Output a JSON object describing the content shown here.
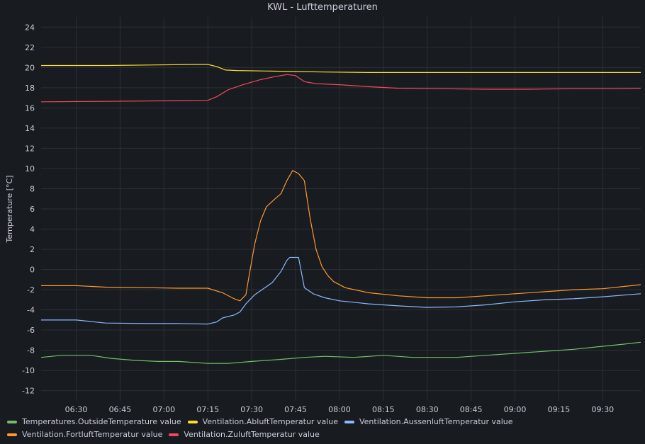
{
  "panel": {
    "title": "KWL - Lufttemperaturen"
  },
  "colors": {
    "background": "#181b1f",
    "grid": "#2c3035",
    "text": "#ccccdc"
  },
  "chart_data": {
    "type": "line",
    "title": "KWL - Lufttemperaturen",
    "xlabel": "",
    "ylabel": "Temperature [°C]",
    "xlim": [
      "06:18",
      "09:43"
    ],
    "ylim": [
      -13,
      25
    ],
    "y_ticks": [
      24,
      22,
      20,
      18,
      16,
      14,
      12,
      10,
      8,
      6,
      4,
      2,
      0,
      -2,
      -4,
      -6,
      -8,
      -10,
      -12
    ],
    "x_ticks": [
      "06:30",
      "06:45",
      "07:00",
      "07:15",
      "07:30",
      "07:45",
      "08:00",
      "08:15",
      "08:30",
      "08:45",
      "09:00",
      "09:15",
      "09:30"
    ],
    "grid": true,
    "legend_position": "bottom",
    "series": [
      {
        "name": "Temperatures.OutsideTemperature value",
        "color": "#73bf69",
        "points": [
          [
            "06:18",
            -8.7
          ],
          [
            "06:25",
            -8.5
          ],
          [
            "06:35",
            -8.5
          ],
          [
            "06:42",
            -8.8
          ],
          [
            "06:50",
            -9.0
          ],
          [
            "06:58",
            -9.1
          ],
          [
            "07:05",
            -9.1
          ],
          [
            "07:15",
            -9.3
          ],
          [
            "07:22",
            -9.3
          ],
          [
            "07:30",
            -9.1
          ],
          [
            "07:40",
            -8.9
          ],
          [
            "07:48",
            -8.7
          ],
          [
            "07:55",
            -8.6
          ],
          [
            "08:05",
            -8.7
          ],
          [
            "08:15",
            -8.5
          ],
          [
            "08:25",
            -8.7
          ],
          [
            "08:40",
            -8.7
          ],
          [
            "08:50",
            -8.5
          ],
          [
            "09:00",
            -8.3
          ],
          [
            "09:10",
            -8.1
          ],
          [
            "09:20",
            -7.9
          ],
          [
            "09:30",
            -7.6
          ],
          [
            "09:37",
            -7.4
          ],
          [
            "09:43",
            -7.2
          ]
        ]
      },
      {
        "name": "Ventilation.AbluftTemperatur value",
        "color": "#fade2a",
        "points": [
          [
            "06:18",
            20.2
          ],
          [
            "06:40",
            20.2
          ],
          [
            "06:55",
            20.25
          ],
          [
            "07:10",
            20.3
          ],
          [
            "07:15",
            20.3
          ],
          [
            "07:18",
            20.1
          ],
          [
            "07:21",
            19.75
          ],
          [
            "07:25",
            19.7
          ],
          [
            "07:35",
            19.65
          ],
          [
            "07:45",
            19.6
          ],
          [
            "07:55",
            19.55
          ],
          [
            "08:10",
            19.5
          ],
          [
            "08:30",
            19.5
          ],
          [
            "09:00",
            19.5
          ],
          [
            "09:20",
            19.5
          ],
          [
            "09:43",
            19.5
          ]
        ]
      },
      {
        "name": "Ventilation.AussenluftTemperatur value",
        "color": "#8ab8ff",
        "points": [
          [
            "06:18",
            -5.0
          ],
          [
            "06:30",
            -5.0
          ],
          [
            "06:40",
            -5.3
          ],
          [
            "06:55",
            -5.35
          ],
          [
            "07:05",
            -5.35
          ],
          [
            "07:15",
            -5.4
          ],
          [
            "07:18",
            -5.2
          ],
          [
            "07:20",
            -4.8
          ],
          [
            "07:24",
            -4.5
          ],
          [
            "07:26",
            -4.2
          ],
          [
            "07:28",
            -3.4
          ],
          [
            "07:31",
            -2.5
          ],
          [
            "07:34",
            -1.9
          ],
          [
            "07:37",
            -1.3
          ],
          [
            "07:40",
            -0.2
          ],
          [
            "07:42",
            0.9
          ],
          [
            "07:43",
            1.2
          ],
          [
            "07:46",
            1.2
          ],
          [
            "07:48",
            -1.8
          ],
          [
            "07:51",
            -2.4
          ],
          [
            "07:55",
            -2.8
          ],
          [
            "08:00",
            -3.1
          ],
          [
            "08:10",
            -3.4
          ],
          [
            "08:20",
            -3.6
          ],
          [
            "08:30",
            -3.75
          ],
          [
            "08:40",
            -3.7
          ],
          [
            "08:50",
            -3.5
          ],
          [
            "09:00",
            -3.2
          ],
          [
            "09:10",
            -3.0
          ],
          [
            "09:20",
            -2.9
          ],
          [
            "09:30",
            -2.7
          ],
          [
            "09:43",
            -2.4
          ]
        ]
      },
      {
        "name": "Ventilation.FortluftTemperatur value",
        "color": "#ff9830",
        "points": [
          [
            "06:18",
            -1.6
          ],
          [
            "06:30",
            -1.6
          ],
          [
            "06:40",
            -1.75
          ],
          [
            "06:55",
            -1.8
          ],
          [
            "07:05",
            -1.85
          ],
          [
            "07:15",
            -1.85
          ],
          [
            "07:20",
            -2.3
          ],
          [
            "07:24",
            -2.9
          ],
          [
            "07:26",
            -3.1
          ],
          [
            "07:28",
            -2.5
          ],
          [
            "07:29",
            -0.8
          ],
          [
            "07:31",
            2.5
          ],
          [
            "07:33",
            4.8
          ],
          [
            "07:35",
            6.2
          ],
          [
            "07:38",
            7.0
          ],
          [
            "07:40",
            7.5
          ],
          [
            "07:42",
            8.8
          ],
          [
            "07:44",
            9.8
          ],
          [
            "07:46",
            9.5
          ],
          [
            "07:48",
            8.8
          ],
          [
            "07:50",
            5.0
          ],
          [
            "07:52",
            2.0
          ],
          [
            "07:54",
            0.3
          ],
          [
            "07:56",
            -0.6
          ],
          [
            "07:58",
            -1.2
          ],
          [
            "08:02",
            -1.8
          ],
          [
            "08:10",
            -2.3
          ],
          [
            "08:20",
            -2.6
          ],
          [
            "08:30",
            -2.8
          ],
          [
            "08:40",
            -2.8
          ],
          [
            "08:50",
            -2.6
          ],
          [
            "09:00",
            -2.4
          ],
          [
            "09:10",
            -2.2
          ],
          [
            "09:20",
            -2.0
          ],
          [
            "09:30",
            -1.9
          ],
          [
            "09:43",
            -1.5
          ]
        ]
      },
      {
        "name": "Ventilation.ZuluftTemperatur value",
        "color": "#f2495c",
        "points": [
          [
            "06:18",
            16.6
          ],
          [
            "06:40",
            16.65
          ],
          [
            "07:00",
            16.7
          ],
          [
            "07:15",
            16.75
          ],
          [
            "07:18",
            17.1
          ],
          [
            "07:22",
            17.8
          ],
          [
            "07:27",
            18.3
          ],
          [
            "07:33",
            18.8
          ],
          [
            "07:38",
            19.1
          ],
          [
            "07:42",
            19.3
          ],
          [
            "07:45",
            19.2
          ],
          [
            "07:48",
            18.6
          ],
          [
            "07:52",
            18.4
          ],
          [
            "08:00",
            18.3
          ],
          [
            "08:10",
            18.1
          ],
          [
            "08:20",
            17.95
          ],
          [
            "08:35",
            17.9
          ],
          [
            "08:50",
            17.85
          ],
          [
            "09:05",
            17.85
          ],
          [
            "09:20",
            17.9
          ],
          [
            "09:35",
            17.9
          ],
          [
            "09:43",
            17.95
          ]
        ]
      }
    ]
  }
}
